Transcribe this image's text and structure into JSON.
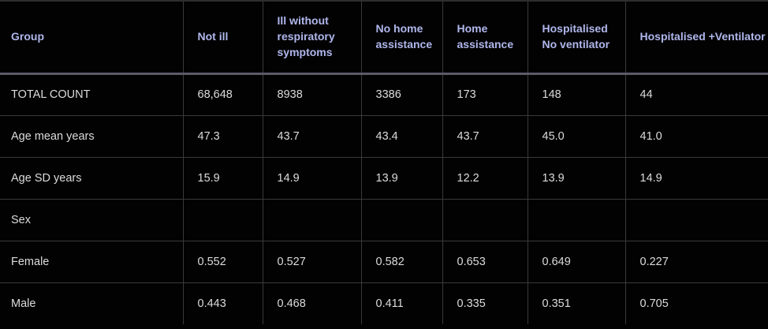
{
  "table": {
    "columns": [
      {
        "label": "Group"
      },
      {
        "label": "Not ill"
      },
      {
        "label": "Ill without respiratory symptoms"
      },
      {
        "label": "No home assistance"
      },
      {
        "label": "Home assistance"
      },
      {
        "label": "Hospitalised No ventilator"
      },
      {
        "label": "Hospitalised +Ventilator"
      }
    ],
    "rows": [
      {
        "label": "TOTAL COUNT",
        "values": [
          "68,648",
          "8938",
          "3386",
          "173",
          "148",
          "44"
        ]
      },
      {
        "label": "Age mean years",
        "values": [
          "47.3",
          "43.7",
          "43.4",
          "43.7",
          "45.0",
          "41.0"
        ]
      },
      {
        "label": "Age SD years",
        "values": [
          "15.9",
          "14.9",
          "13.9",
          "12.2",
          "13.9",
          "14.9"
        ]
      },
      {
        "label": "Sex",
        "values": [
          "",
          "",
          "",
          "",
          "",
          ""
        ]
      },
      {
        "label": "Female",
        "values": [
          "0.552",
          "0.527",
          "0.582",
          "0.653",
          "0.649",
          "0.227"
        ]
      },
      {
        "label": "Male",
        "values": [
          "0.443",
          "0.468",
          "0.411",
          "0.335",
          "0.351",
          "0.705"
        ]
      }
    ]
  },
  "colors": {
    "background": "#020202",
    "header_text": "#b0b7ec",
    "body_text": "#dcdcdc",
    "grid_line": "#3a3a3a",
    "header_rule": "#5a5a6a",
    "top_rule": "#2e2e2e"
  }
}
